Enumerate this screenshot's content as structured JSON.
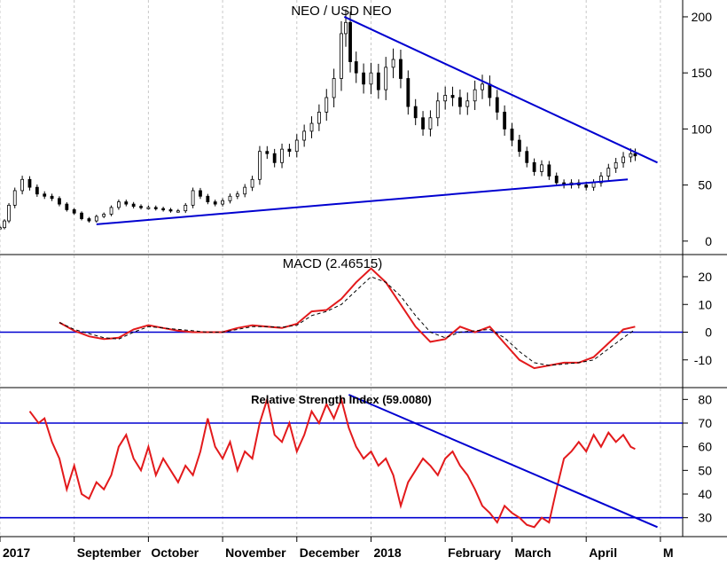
{
  "chart_data": [
    {
      "type": "candlestick",
      "title": "NEO / USD NEO",
      "ylim": [
        -12,
        215
      ],
      "yticks": [
        0,
        50,
        100,
        150,
        200
      ],
      "candles": [
        {
          "t": 0,
          "v": 12
        },
        {
          "t": 0.3,
          "v": 18
        },
        {
          "t": 0.6,
          "v": 32
        },
        {
          "t": 1,
          "v": 45
        },
        {
          "t": 1.5,
          "v": 55
        },
        {
          "t": 2,
          "v": 48
        },
        {
          "t": 2.5,
          "v": 42
        },
        {
          "t": 3,
          "v": 40
        },
        {
          "t": 3.5,
          "v": 38
        },
        {
          "t": 4,
          "v": 33
        },
        {
          "t": 4.5,
          "v": 28
        },
        {
          "t": 5,
          "v": 25
        },
        {
          "t": 5.5,
          "v": 20
        },
        {
          "t": 6,
          "v": 18
        },
        {
          "t": 6.5,
          "v": 22
        },
        {
          "t": 7,
          "v": 24
        },
        {
          "t": 7.5,
          "v": 30
        },
        {
          "t": 8,
          "v": 35
        },
        {
          "t": 8.5,
          "v": 33
        },
        {
          "t": 9,
          "v": 31
        },
        {
          "t": 9.5,
          "v": 30
        },
        {
          "t": 10,
          "v": 30
        },
        {
          "t": 10.5,
          "v": 29
        },
        {
          "t": 11,
          "v": 28
        },
        {
          "t": 11.5,
          "v": 27
        },
        {
          "t": 12,
          "v": 27
        },
        {
          "t": 12.5,
          "v": 32
        },
        {
          "t": 13,
          "v": 45
        },
        {
          "t": 13.5,
          "v": 40
        },
        {
          "t": 14,
          "v": 35
        },
        {
          "t": 14.5,
          "v": 33
        },
        {
          "t": 15,
          "v": 36
        },
        {
          "t": 15.5,
          "v": 40
        },
        {
          "t": 16,
          "v": 42
        },
        {
          "t": 16.5,
          "v": 48
        },
        {
          "t": 17,
          "v": 55
        },
        {
          "t": 17.5,
          "v": 80
        },
        {
          "t": 18,
          "v": 78
        },
        {
          "t": 18.5,
          "v": 70
        },
        {
          "t": 19,
          "v": 82
        },
        {
          "t": 19.5,
          "v": 80
        },
        {
          "t": 20,
          "v": 90
        },
        {
          "t": 20.5,
          "v": 98
        },
        {
          "t": 21,
          "v": 105
        },
        {
          "t": 21.5,
          "v": 115
        },
        {
          "t": 22,
          "v": 128
        },
        {
          "t": 22.5,
          "v": 145
        },
        {
          "t": 23,
          "v": 185
        },
        {
          "t": 23.3,
          "v": 195
        },
        {
          "t": 23.6,
          "v": 160
        },
        {
          "t": 24,
          "v": 150
        },
        {
          "t": 24.5,
          "v": 140
        },
        {
          "t": 25,
          "v": 150
        },
        {
          "t": 25.5,
          "v": 135
        },
        {
          "t": 26,
          "v": 155
        },
        {
          "t": 26.5,
          "v": 162
        },
        {
          "t": 27,
          "v": 145
        },
        {
          "t": 27.5,
          "v": 120
        },
        {
          "t": 28,
          "v": 110
        },
        {
          "t": 28.5,
          "v": 100
        },
        {
          "t": 29,
          "v": 110
        },
        {
          "t": 29.5,
          "v": 125
        },
        {
          "t": 30,
          "v": 130
        },
        {
          "t": 30.5,
          "v": 128
        },
        {
          "t": 31,
          "v": 120
        },
        {
          "t": 31.5,
          "v": 125
        },
        {
          "t": 32,
          "v": 135
        },
        {
          "t": 32.5,
          "v": 140
        },
        {
          "t": 33,
          "v": 128
        },
        {
          "t": 33.5,
          "v": 115
        },
        {
          "t": 34,
          "v": 100
        },
        {
          "t": 34.5,
          "v": 90
        },
        {
          "t": 35,
          "v": 80
        },
        {
          "t": 35.5,
          "v": 70
        },
        {
          "t": 36,
          "v": 62
        },
        {
          "t": 36.5,
          "v": 68
        },
        {
          "t": 37,
          "v": 58
        },
        {
          "t": 37.5,
          "v": 52
        },
        {
          "t": 38,
          "v": 50
        },
        {
          "t": 38.5,
          "v": 52
        },
        {
          "t": 39,
          "v": 50
        },
        {
          "t": 39.5,
          "v": 48
        },
        {
          "t": 40,
          "v": 52
        },
        {
          "t": 40.5,
          "v": 58
        },
        {
          "t": 41,
          "v": 65
        },
        {
          "t": 41.5,
          "v": 70
        },
        {
          "t": 42,
          "v": 75
        },
        {
          "t": 42.5,
          "v": 78
        },
        {
          "t": 42.8,
          "v": 76
        }
      ],
      "trendlines": [
        {
          "from": [
            6.5,
            15
          ],
          "to": [
            42.3,
            55
          ]
        },
        {
          "from": [
            23.2,
            200
          ],
          "to": [
            44.3,
            70
          ]
        }
      ]
    },
    {
      "type": "line",
      "title": "MACD (2.46515)",
      "ylim": [
        -20,
        28
      ],
      "yticks": [
        -10,
        0,
        10,
        20
      ],
      "reference_lines": [
        0
      ],
      "series": [
        {
          "color": "#e31a1c",
          "style": "solid",
          "points": [
            [
              4.0,
              3.5
            ],
            [
              5.0,
              0.5
            ],
            [
              6.0,
              -1.5
            ],
            [
              7.0,
              -2.5
            ],
            [
              8.0,
              -2
            ],
            [
              9.0,
              1
            ],
            [
              10.0,
              2.5
            ],
            [
              11.0,
              1.5
            ],
            [
              12.0,
              0.5
            ],
            [
              13.0,
              0
            ],
            [
              14.0,
              0
            ],
            [
              15.0,
              0
            ],
            [
              16.0,
              1.5
            ],
            [
              17.0,
              2.5
            ],
            [
              18.0,
              2
            ],
            [
              19.0,
              1.5
            ],
            [
              20.0,
              3
            ],
            [
              21.0,
              7.5
            ],
            [
              22.0,
              8
            ],
            [
              23.0,
              12
            ],
            [
              24.0,
              18
            ],
            [
              25.0,
              23
            ],
            [
              26.0,
              18
            ],
            [
              27.0,
              10
            ],
            [
              28.0,
              2
            ],
            [
              29.0,
              -3.5
            ],
            [
              30.0,
              -2.5
            ],
            [
              31.0,
              2
            ],
            [
              32.0,
              0
            ],
            [
              33.0,
              2
            ],
            [
              34.0,
              -4
            ],
            [
              35.0,
              -10
            ],
            [
              36.0,
              -13
            ],
            [
              37.0,
              -12
            ],
            [
              38.0,
              -11
            ],
            [
              39.0,
              -11
            ],
            [
              40.0,
              -9
            ],
            [
              41.0,
              -4
            ],
            [
              42.0,
              1
            ],
            [
              42.8,
              2
            ]
          ]
        },
        {
          "color": "#000000",
          "style": "dashed",
          "points": [
            [
              4.0,
              3.5
            ],
            [
              5.0,
              1
            ],
            [
              6.0,
              -0.5
            ],
            [
              7.0,
              -2
            ],
            [
              8.0,
              -2.5
            ],
            [
              9.0,
              0
            ],
            [
              10.0,
              2
            ],
            [
              11.0,
              1.5
            ],
            [
              12.0,
              1
            ],
            [
              13.0,
              0.5
            ],
            [
              14.0,
              0
            ],
            [
              15.0,
              0
            ],
            [
              16.0,
              1
            ],
            [
              17.0,
              2
            ],
            [
              18.0,
              2
            ],
            [
              19.0,
              1.8
            ],
            [
              20.0,
              2.5
            ],
            [
              21.0,
              6
            ],
            [
              22.0,
              7.5
            ],
            [
              23.0,
              10
            ],
            [
              24.0,
              15
            ],
            [
              25.0,
              20
            ],
            [
              26.0,
              18
            ],
            [
              27.0,
              13
            ],
            [
              28.0,
              6
            ],
            [
              29.0,
              0
            ],
            [
              30.0,
              -2
            ],
            [
              31.0,
              0
            ],
            [
              32.0,
              0.5
            ],
            [
              33.0,
              1
            ],
            [
              34.0,
              -2
            ],
            [
              35.0,
              -7
            ],
            [
              36.0,
              -11
            ],
            [
              37.0,
              -12
            ],
            [
              38.0,
              -11.5
            ],
            [
              39.0,
              -11
            ],
            [
              40.0,
              -10
            ],
            [
              41.0,
              -6
            ],
            [
              42.0,
              -2
            ],
            [
              42.8,
              1
            ]
          ]
        }
      ]
    },
    {
      "type": "line",
      "title": "Relative Strength Index (59.0080)",
      "ylim": [
        22,
        85
      ],
      "yticks": [
        30,
        40,
        50,
        60,
        70,
        80
      ],
      "reference_lines": [
        30,
        70
      ],
      "series": [
        {
          "color": "#e31a1c",
          "style": "solid",
          "points": [
            [
              2.0,
              75
            ],
            [
              2.6,
              70
            ],
            [
              3.0,
              72
            ],
            [
              3.5,
              62
            ],
            [
              4.0,
              55
            ],
            [
              4.5,
              42
            ],
            [
              5.0,
              52
            ],
            [
              5.5,
              40
            ],
            [
              6.0,
              38
            ],
            [
              6.5,
              45
            ],
            [
              7.0,
              42
            ],
            [
              7.5,
              48
            ],
            [
              8.0,
              60
            ],
            [
              8.5,
              65
            ],
            [
              9.0,
              55
            ],
            [
              9.5,
              50
            ],
            [
              10.0,
              60
            ],
            [
              10.5,
              48
            ],
            [
              11.0,
              55
            ],
            [
              11.5,
              50
            ],
            [
              12.0,
              45
            ],
            [
              12.5,
              52
            ],
            [
              13.0,
              48
            ],
            [
              13.5,
              58
            ],
            [
              14.0,
              72
            ],
            [
              14.5,
              60
            ],
            [
              15.0,
              55
            ],
            [
              15.5,
              62
            ],
            [
              16.0,
              50
            ],
            [
              16.5,
              58
            ],
            [
              17.0,
              55
            ],
            [
              17.5,
              70
            ],
            [
              18.0,
              80
            ],
            [
              18.5,
              65
            ],
            [
              19.0,
              62
            ],
            [
              19.5,
              70
            ],
            [
              20.0,
              58
            ],
            [
              20.5,
              65
            ],
            [
              21.0,
              75
            ],
            [
              21.5,
              70
            ],
            [
              22.0,
              78
            ],
            [
              22.5,
              72
            ],
            [
              23.0,
              80
            ],
            [
              23.5,
              68
            ],
            [
              24.0,
              60
            ],
            [
              24.5,
              55
            ],
            [
              25.0,
              58
            ],
            [
              25.5,
              52
            ],
            [
              26.0,
              55
            ],
            [
              26.5,
              48
            ],
            [
              27.0,
              35
            ],
            [
              27.5,
              45
            ],
            [
              28.0,
              50
            ],
            [
              28.5,
              55
            ],
            [
              29.0,
              52
            ],
            [
              29.5,
              48
            ],
            [
              30.0,
              55
            ],
            [
              30.5,
              58
            ],
            [
              31.0,
              52
            ],
            [
              31.5,
              48
            ],
            [
              32.0,
              42
            ],
            [
              32.5,
              35
            ],
            [
              33.0,
              32
            ],
            [
              33.5,
              28
            ],
            [
              34.0,
              35
            ],
            [
              34.5,
              32
            ],
            [
              35.0,
              30
            ],
            [
              35.5,
              27
            ],
            [
              36.0,
              26
            ],
            [
              36.5,
              30
            ],
            [
              37.0,
              28
            ],
            [
              37.5,
              42
            ],
            [
              38.0,
              55
            ],
            [
              38.5,
              58
            ],
            [
              39.0,
              62
            ],
            [
              39.5,
              58
            ],
            [
              40.0,
              65
            ],
            [
              40.5,
              60
            ],
            [
              41.0,
              66
            ],
            [
              41.5,
              62
            ],
            [
              42.0,
              65
            ],
            [
              42.5,
              60
            ],
            [
              42.8,
              59
            ]
          ]
        }
      ],
      "trendlines": [
        {
          "from": [
            23.5,
            82
          ],
          "to": [
            44.3,
            26
          ]
        }
      ]
    }
  ],
  "x_axis": {
    "labels": [
      {
        "t": 0,
        "text": "2017"
      },
      {
        "t": 5,
        "text": "September"
      },
      {
        "t": 10,
        "text": "October"
      },
      {
        "t": 15,
        "text": "November"
      },
      {
        "t": 20,
        "text": "December"
      },
      {
        "t": 25,
        "text": "2018"
      },
      {
        "t": 30,
        "text": "February"
      },
      {
        "t": 34.5,
        "text": "March"
      },
      {
        "t": 39.5,
        "text": "April"
      },
      {
        "t": 44.5,
        "text": "M"
      }
    ]
  },
  "colors": {
    "up": "#000000",
    "trend": "#0000d0",
    "rsi": "#e31a1c",
    "macd_line": "#e31a1c",
    "signal": "#000000",
    "reference": "#0000d0"
  }
}
